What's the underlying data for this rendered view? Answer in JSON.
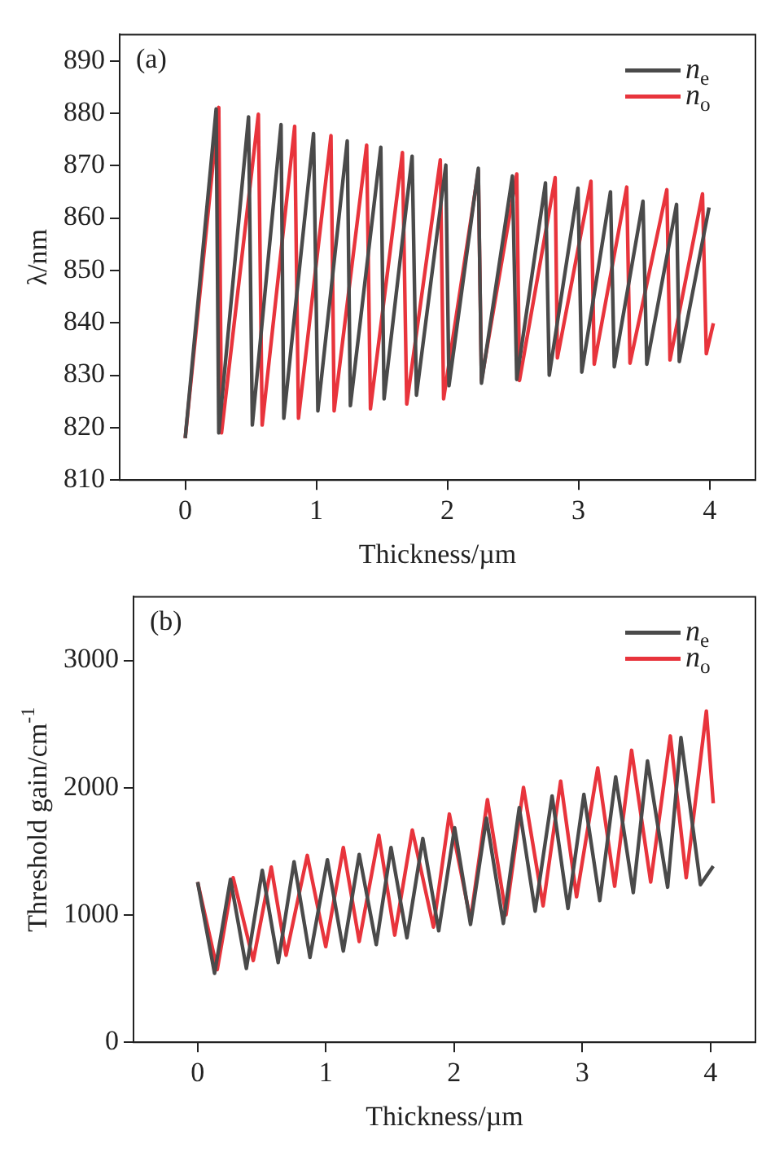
{
  "chart_data": [
    {
      "type": "line",
      "xlabel": "Thickness/µm",
      "ylabel": "λ/nm",
      "annotations": [
        "(a)"
      ],
      "xlim": [
        -0.5,
        4.35
      ],
      "ylim": [
        810,
        895
      ],
      "xticks": [
        0,
        1,
        2,
        3,
        4
      ],
      "yticks": [
        810,
        820,
        830,
        840,
        850,
        860,
        870,
        880,
        890
      ],
      "grid": false,
      "legend": "top right",
      "marker": "none",
      "line_style": "solid",
      "series": [
        {
          "name": "n$_{e}$",
          "color": "#4a4a4a",
          "x": [
            0,
            0.236,
            0.256,
            0.483,
            0.512,
            0.731,
            0.752,
            0.979,
            1.012,
            1.236,
            1.26,
            1.492,
            1.517,
            1.731,
            1.764,
            1.988,
            2.012,
            2.236,
            2.26,
            2.496,
            2.529,
            2.748,
            2.777,
            2.996,
            3.025,
            3.244,
            3.273,
            3.492,
            3.521,
            3.748,
            3.769,
            3.996
          ],
          "values": [
            818,
            880.8,
            819,
            879.3,
            820.5,
            877.8,
            821.8,
            876.1,
            823.2,
            874.7,
            824.2,
            873.5,
            825.5,
            871.8,
            826.2,
            870.1,
            828,
            869.5,
            828.5,
            868,
            829.2,
            866.7,
            830,
            865.7,
            830.6,
            865,
            831.6,
            863.2,
            832.1,
            862.6,
            832.6,
            862
          ]
        },
        {
          "name": "n$_{o}$",
          "color": "#e8343c",
          "x": [
            0,
            0.256,
            0.277,
            0.558,
            0.587,
            0.835,
            0.864,
            1.112,
            1.136,
            1.384,
            1.413,
            1.657,
            1.69,
            1.946,
            1.971,
            2.236,
            2.26,
            2.529,
            2.55,
            2.822,
            2.839,
            3.095,
            3.12,
            3.368,
            3.393,
            3.674,
            3.698,
            3.946,
            3.975,
            4.029
          ],
          "values": [
            818,
            881.1,
            819,
            879.8,
            820.5,
            877.5,
            821.8,
            875.7,
            823.2,
            873.9,
            823.6,
            872.5,
            824.5,
            871.1,
            825.5,
            869,
            829,
            868.4,
            829,
            867.7,
            833.3,
            867,
            832.1,
            865.9,
            832.3,
            865.4,
            832.9,
            864.6,
            834.1,
            839.9
          ]
        }
      ]
    },
    {
      "type": "line",
      "xlabel": "Thickness/µm",
      "ylabel": "Threshold gain/cm$^{-1}$",
      "annotations": [
        "(b)"
      ],
      "xlim": [
        -0.5,
        4.35
      ],
      "ylim": [
        0,
        3500
      ],
      "xticks": [
        0,
        1,
        2,
        3,
        4
      ],
      "yticks": [
        0,
        1000,
        2000,
        3000
      ],
      "grid": false,
      "legend": "top right",
      "marker": "none",
      "line_style": "solid",
      "series": [
        {
          "name": "n$_{e}$",
          "color": "#4a4a4a",
          "x": [
            0,
            0.132,
            0.256,
            0.38,
            0.504,
            0.628,
            0.752,
            0.876,
            1.012,
            1.136,
            1.26,
            1.393,
            1.508,
            1.632,
            1.756,
            1.88,
            2.004,
            2.128,
            2.252,
            2.384,
            2.508,
            2.632,
            2.764,
            2.888,
            3.012,
            3.136,
            3.26,
            3.397,
            3.508,
            3.665,
            3.769,
            3.921,
            4.021
          ],
          "values": [
            1259,
            542,
            1280,
            580,
            1351,
            626,
            1418,
            667,
            1434,
            717,
            1476,
            767,
            1530,
            821,
            1601,
            876,
            1685,
            926,
            1760,
            934,
            1843,
            1030,
            1935,
            1051,
            1947,
            1113,
            2085,
            1176,
            2210,
            1218,
            2394,
            1238,
            1384
          ]
        },
        {
          "name": "n$_{o}$",
          "color": "#e8343c",
          "x": [
            0,
            0.153,
            0.277,
            0.434,
            0.574,
            0.69,
            0.855,
            0.999,
            1.136,
            1.26,
            1.413,
            1.537,
            1.674,
            1.839,
            1.963,
            2.128,
            2.26,
            2.405,
            2.541,
            2.694,
            2.831,
            2.955,
            3.12,
            3.252,
            3.384,
            3.533,
            3.686,
            3.81,
            3.967,
            4.021
          ],
          "values": [
            1259,
            571,
            1293,
            642,
            1376,
            684,
            1468,
            751,
            1530,
            792,
            1626,
            842,
            1668,
            905,
            1793,
            959,
            1906,
            1001,
            2002,
            1072,
            2052,
            1143,
            2156,
            1226,
            2294,
            1259,
            2406,
            1293,
            2602,
            1877
          ]
        }
      ]
    }
  ]
}
